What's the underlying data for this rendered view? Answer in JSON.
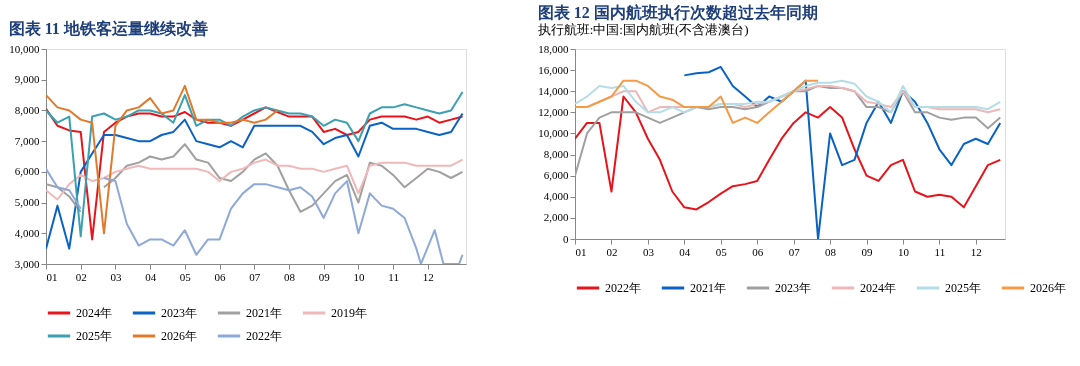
{
  "chart_data": [
    {
      "type": "line",
      "title": "图表 11 地铁客运量继续改善",
      "legend": "bottom",
      "grid": false,
      "line_style": "solid",
      "marker": "none",
      "x": [
        1,
        1.33,
        1.67,
        2,
        2.33,
        2.67,
        3,
        3.33,
        3.67,
        4,
        4.33,
        4.67,
        5,
        5.33,
        5.67,
        6,
        6.33,
        6.67,
        7,
        7.33,
        7.67,
        8,
        8.33,
        8.67,
        9,
        9.33,
        9.67,
        10,
        10.33,
        10.67,
        11,
        11.33,
        11.67,
        12,
        12.33,
        12.67,
        13
      ],
      "xlim": [
        1,
        13.1
      ],
      "xticks": [
        {
          "value": 1,
          "label": "01"
        },
        {
          "value": 2,
          "label": "02"
        },
        {
          "value": 3,
          "label": "03"
        },
        {
          "value": 4,
          "label": "04"
        },
        {
          "value": 5,
          "label": "05"
        },
        {
          "value": 6,
          "label": "06"
        },
        {
          "value": 7,
          "label": "07"
        },
        {
          "value": 8,
          "label": "08"
        },
        {
          "value": 9,
          "label": "09"
        },
        {
          "value": 10,
          "label": "10"
        },
        {
          "value": 11,
          "label": "11"
        },
        {
          "value": 12,
          "label": "12"
        }
      ],
      "ylim": [
        3000,
        10000
      ],
      "yticks": [
        {
          "value": 3000,
          "label": "3,000"
        },
        {
          "value": 4000,
          "label": "4,000"
        },
        {
          "value": 5000,
          "label": "5,000"
        },
        {
          "value": 6000,
          "label": "6,000"
        },
        {
          "value": 7000,
          "label": "7,000"
        },
        {
          "value": 8000,
          "label": "8,000"
        },
        {
          "value": 9000,
          "label": "9,000"
        },
        {
          "value": 10000,
          "label": "10,000"
        }
      ],
      "series": [
        {
          "name": "2024年",
          "color": "#e8141c",
          "values": [
            8050,
            7500,
            7350,
            7300,
            3800,
            7300,
            7600,
            7800,
            7900,
            7900,
            7800,
            7800,
            7950,
            7700,
            7600,
            7600,
            7500,
            7700,
            7900,
            8100,
            7950,
            7800,
            7800,
            7800,
            7300,
            7400,
            7200,
            7300,
            7700,
            7800,
            7800,
            7800,
            7700,
            7800,
            7600,
            7700,
            7800
          ]
        },
        {
          "name": "2023年",
          "color": "#0a63c2",
          "values": [
            3500,
            4900,
            3500,
            6000,
            6600,
            7200,
            7200,
            7100,
            7000,
            7000,
            7200,
            7300,
            7700,
            7000,
            6900,
            6800,
            7000,
            6800,
            7500,
            7500,
            7500,
            7500,
            7500,
            7300,
            6900,
            7100,
            7200,
            6500,
            7500,
            7600,
            7400,
            7400,
            7400,
            7300,
            7200,
            7300,
            7900
          ]
        },
        {
          "name": "2021年",
          "color": "#a0a0a0",
          "values": [
            5600,
            5500,
            5200,
            4700,
            null,
            5500,
            5800,
            6200,
            6300,
            6500,
            6400,
            6500,
            6900,
            6400,
            6300,
            5800,
            5700,
            6000,
            6400,
            6600,
            6200,
            5400,
            4700,
            4900,
            5300,
            5700,
            5900,
            5000,
            6300,
            6200,
            5900,
            5500,
            5800,
            6100,
            6000,
            5800,
            6000
          ]
        },
        {
          "name": "2019年",
          "color": "#f0b8b8",
          "values": [
            5400,
            5100,
            5600,
            5900,
            5700,
            5800,
            6000,
            6100,
            6200,
            6100,
            6100,
            6100,
            6100,
            6100,
            6000,
            5700,
            6000,
            6100,
            6300,
            6400,
            6200,
            6200,
            6100,
            6100,
            6000,
            6100,
            6200,
            5300,
            6200,
            6300,
            6300,
            6300,
            6200,
            6200,
            6200,
            6200,
            6400
          ]
        },
        {
          "name": "2025年",
          "color": "#3ba0b0",
          "values": [
            8000,
            7600,
            7800,
            3900,
            7800,
            7900,
            7700,
            7800,
            8000,
            8000,
            7900,
            7600,
            8500,
            7500,
            7700,
            7700,
            7500,
            7800,
            8000,
            8100,
            8000,
            7900,
            7900,
            7800,
            7500,
            7700,
            7600,
            7000,
            7900,
            8100,
            8100,
            8200,
            8100,
            8000,
            7900,
            8000,
            8600
          ]
        },
        {
          "name": "2026年",
          "color": "#e07b2e",
          "values": [
            8500,
            8100,
            8000,
            7700,
            7600,
            4000,
            7500,
            8000,
            8100,
            8400,
            7900,
            8000,
            8800,
            7700,
            7700,
            7600,
            7600,
            7700,
            7600,
            7700,
            8000,
            null,
            null,
            null,
            null,
            null,
            null,
            null,
            null,
            null,
            null,
            null,
            null,
            null,
            null,
            null,
            null
          ]
        },
        {
          "name": "2022年",
          "color": "#8ea9d8",
          "x": [
            1,
            1.33,
            1.67,
            2,
            2.33,
            2.67,
            3,
            3.33,
            3.67,
            4,
            4.33,
            4.67,
            5,
            5.33,
            5.67,
            6,
            6.33,
            6.67,
            7,
            7.33,
            7.67,
            8,
            8.33,
            8.67,
            9,
            9.33,
            9.67,
            10,
            10.33,
            10.67,
            11,
            11.33,
            11.67,
            11.8,
            12.2,
            12.45,
            12.9,
            13
          ],
          "values": [
            6100,
            5500,
            5400,
            4800,
            null,
            5800,
            5700,
            4300,
            3600,
            3800,
            3800,
            3600,
            4100,
            3300,
            3800,
            3800,
            4800,
            5300,
            5600,
            5600,
            5500,
            5400,
            5500,
            5200,
            4500,
            5300,
            5700,
            4000,
            5300,
            4900,
            4800,
            4500,
            3500,
            3000,
            4100,
            3000,
            3000,
            3300
          ]
        }
      ]
    },
    {
      "type": "line",
      "title": "图表 12 国内航班执行次数超过去年同期",
      "subtitle": "执行航班:中国:国内航班(不含港澳台)",
      "legend": "bottom",
      "grid": false,
      "line_style": "solid",
      "marker": "none",
      "x": [
        1,
        1.33,
        1.67,
        2,
        2.33,
        2.67,
        3,
        3.33,
        3.67,
        4,
        4.33,
        4.67,
        5,
        5.33,
        5.67,
        6,
        6.33,
        6.67,
        7,
        7.33,
        7.67,
        8,
        8.33,
        8.67,
        9,
        9.33,
        9.67,
        10,
        10.33,
        10.67,
        11,
        11.33,
        11.67,
        12,
        12.33,
        12.67
      ],
      "xlim": [
        1,
        12.8
      ],
      "xticks": [
        {
          "value": 1,
          "label": "01"
        },
        {
          "value": 2,
          "label": "02"
        },
        {
          "value": 3,
          "label": "03"
        },
        {
          "value": 4,
          "label": "04"
        },
        {
          "value": 5,
          "label": "05"
        },
        {
          "value": 6,
          "label": "06"
        },
        {
          "value": 7,
          "label": "07"
        },
        {
          "value": 8,
          "label": "08"
        },
        {
          "value": 9,
          "label": "09"
        },
        {
          "value": 10,
          "label": "10"
        },
        {
          "value": 11,
          "label": "11"
        },
        {
          "value": 12,
          "label": "12"
        }
      ],
      "ylim": [
        0,
        18000
      ],
      "yticks": [
        0,
        {
          "value": 2000,
          "label": "2,000"
        },
        {
          "value": 4000,
          "label": "4,000"
        },
        {
          "value": 6000,
          "label": "6,000"
        },
        {
          "value": 8000,
          "label": "8,000"
        },
        {
          "value": 10000,
          "label": "10,000"
        },
        {
          "value": 12000,
          "label": "12,000"
        },
        {
          "value": 14000,
          "label": "14,000"
        },
        {
          "value": 16000,
          "label": "16,000"
        },
        {
          "value": 18000,
          "label": "18,000"
        }
      ],
      "series": [
        {
          "name": "2022年",
          "color": "#e8141c",
          "values": [
            9500,
            11000,
            11000,
            4500,
            13500,
            12000,
            9500,
            7500,
            4500,
            3000,
            2800,
            3500,
            4300,
            5000,
            5200,
            5500,
            7500,
            9500,
            11000,
            12000,
            11500,
            12500,
            11500,
            8500,
            6000,
            5500,
            7000,
            7500,
            4500,
            4000,
            4200,
            4000,
            3000,
            5000,
            7000,
            7500
          ]
        },
        {
          "name": "2021年",
          "color": "#0a63c2",
          "values": [
            null,
            null,
            null,
            null,
            null,
            null,
            null,
            null,
            null,
            15500,
            15700,
            15800,
            16300,
            14500,
            13500,
            12500,
            13500,
            13000,
            14000,
            15000,
            0,
            10000,
            7000,
            7500,
            11000,
            13000,
            11000,
            14000,
            13000,
            11000,
            8500,
            7000,
            9000,
            9500,
            9000,
            11000
          ]
        },
        {
          "name": "2023年",
          "color": "#a0a0a0",
          "values": [
            6000,
            10000,
            11500,
            12000,
            12000,
            12000,
            11500,
            11000,
            11500,
            12000,
            12500,
            12300,
            12500,
            12500,
            12300,
            12500,
            13000,
            13500,
            14000,
            14000,
            14500,
            14300,
            14300,
            14000,
            12500,
            12500,
            12000,
            14000,
            12000,
            12000,
            11500,
            11300,
            11500,
            11500,
            10500,
            11500
          ]
        },
        {
          "name": "2024年",
          "color": "#ecb8b8",
          "values": [
            12500,
            12500,
            13000,
            13500,
            14000,
            14000,
            12000,
            12500,
            12500,
            12500,
            12500,
            12500,
            12800,
            12800,
            12500,
            12800,
            13000,
            13500,
            14000,
            14200,
            14500,
            14500,
            14300,
            14000,
            13000,
            12800,
            12500,
            14000,
            12500,
            12500,
            12300,
            12300,
            12300,
            12300,
            12000,
            12300
          ]
        },
        {
          "name": "2025年",
          "color": "#b5dde8",
          "values": [
            12800,
            13500,
            14500,
            14300,
            14500,
            13000,
            12000,
            12000,
            12500,
            12000,
            12500,
            12500,
            12800,
            12800,
            12800,
            13000,
            13000,
            13500,
            14000,
            14500,
            14800,
            14800,
            15000,
            14700,
            13500,
            13000,
            12000,
            14500,
            12500,
            12500,
            12500,
            12500,
            12500,
            12500,
            12300,
            13000
          ]
        },
        {
          "name": "2026年",
          "color": "#f59a45",
          "values": [
            12500,
            12500,
            13000,
            13500,
            15000,
            15000,
            14500,
            13500,
            13200,
            12500,
            12500,
            12500,
            13500,
            11000,
            11500,
            11000,
            12000,
            13000,
            14000,
            15000,
            15000,
            null,
            null,
            null,
            null,
            null,
            null,
            null,
            null,
            null,
            null,
            null,
            null,
            null,
            null,
            null
          ]
        }
      ]
    }
  ]
}
